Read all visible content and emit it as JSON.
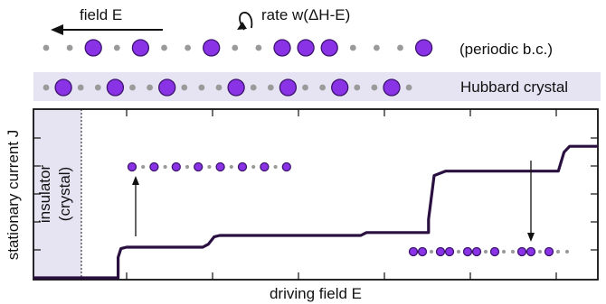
{
  "top": {
    "field_label": "field E",
    "rate_label": "rate w(ΔH-E)",
    "chain1_label": "(periodic b.c.)",
    "chain2_label": "Hubbard crystal"
  },
  "axes": {
    "ylabel": "stationary current J",
    "xlabel": "driving field E",
    "insulator_line1": "insulator",
    "insulator_line2": "(crystal)"
  },
  "chains": {
    "periodic": "..O.O..O..OOO...O",
    "hubbard": ".O..O..O...O..O..O..O.",
    "inset_left": "O.O.O.O.O.O.O.O",
    "inset_right": "OO.OO.OO.O..OO.O.."
  },
  "colors": {
    "particle": "#8a33e6",
    "particle_edge": "#3d1470",
    "site": "#9a9a9a",
    "curve": "#2a1040",
    "band": "#e6e4f2",
    "insulator": "#e6e4f2"
  },
  "chart_data": {
    "type": "line",
    "xlabel": "driving field E",
    "ylabel": "stationary current J",
    "series": [
      {
        "values": [
          [
            0.0,
            0.0
          ],
          [
            0.15,
            0.0
          ],
          [
            0.15,
            0.14
          ],
          [
            0.155,
            0.2
          ],
          [
            0.165,
            0.21
          ],
          [
            0.3,
            0.21
          ],
          [
            0.31,
            0.23
          ],
          [
            0.32,
            0.28
          ],
          [
            0.33,
            0.29
          ],
          [
            0.58,
            0.29
          ],
          [
            0.59,
            0.31
          ],
          [
            0.7,
            0.31
          ],
          [
            0.7,
            0.4
          ],
          [
            0.71,
            0.7
          ],
          [
            0.73,
            0.73
          ],
          [
            0.93,
            0.73
          ],
          [
            0.94,
            0.86
          ],
          [
            0.95,
            0.9
          ],
          [
            1.0,
            0.9
          ]
        ]
      }
    ]
  }
}
